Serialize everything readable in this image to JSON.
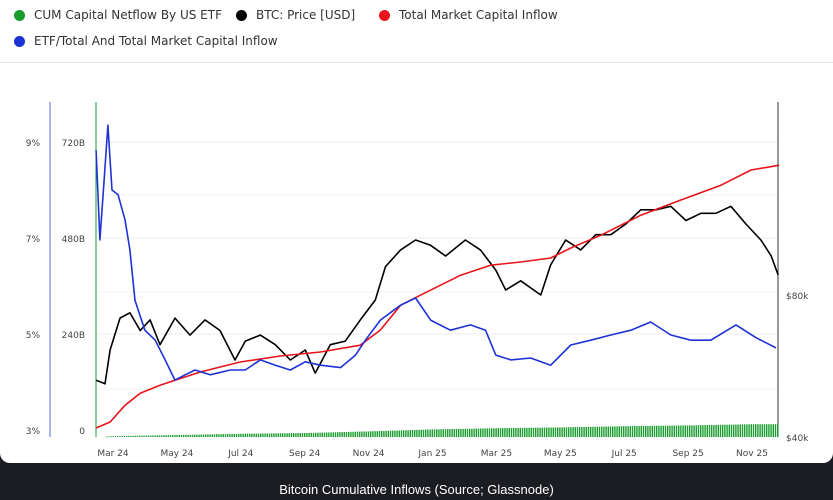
{
  "caption": "Bitcoin Cumulative Inflows (Source; Glassnode)",
  "legend": [
    {
      "label": "CUM Capital Netflow By US ETF",
      "color": "#1a9c2f"
    },
    {
      "label": "BTC: Price [USD]",
      "color": "#000000"
    },
    {
      "label": "Total Market Capital Inflow",
      "color": "#e8141c"
    },
    {
      "label": "ETF/Total And Total Market Capital Inflow",
      "color": "#1f32d6"
    }
  ],
  "chart_data": {
    "type": "line",
    "x_unit": "months since Mar 2024",
    "x_range": [
      -0.53,
      20.85
    ],
    "x_ticks": [
      "Mar 24",
      "May 24",
      "Jul 24",
      "Sep 24",
      "Nov 24",
      "Jan 25",
      "Mar 25",
      "May 25",
      "Jul 25",
      "Sep 25",
      "Nov 25"
    ],
    "x_tick_positions": [
      0,
      2,
      4,
      6,
      8,
      10,
      12,
      14,
      16,
      18,
      20
    ],
    "y_axes": {
      "percent": {
        "ticks": [
          "9%",
          "7%",
          "5%",
          "3%"
        ],
        "values": [
          9,
          7,
          5,
          3
        ],
        "range": [
          3,
          9
        ]
      },
      "billions": {
        "ticks": [
          "720B",
          "480B",
          "240B",
          "0"
        ],
        "values": [
          720,
          480,
          240,
          0
        ],
        "range": [
          0,
          720
        ]
      },
      "price": {
        "ticks": [
          "$80k",
          "$40k"
        ],
        "values": [
          80,
          40
        ]
      }
    },
    "series": [
      {
        "name": "CUM Capital Netflow By US ETF",
        "type": "bar",
        "axis": "billions",
        "color": "#1a9c2f",
        "points": [
          [
            -0.5,
            0
          ],
          [
            0,
            2
          ],
          [
            2,
            5
          ],
          [
            4,
            8
          ],
          [
            6,
            10
          ],
          [
            8,
            14
          ],
          [
            10,
            19
          ],
          [
            12,
            22
          ],
          [
            14,
            24
          ],
          [
            16,
            27
          ],
          [
            18,
            29
          ],
          [
            20,
            32
          ],
          [
            20.8,
            32
          ]
        ]
      },
      {
        "name": "BTC: Price [USD]",
        "axis": "price",
        "unit": "k USD",
        "color": "#000000",
        "points": [
          [
            -0.53,
            56
          ],
          [
            -0.25,
            55
          ],
          [
            -0.09,
            64.5
          ],
          [
            0.22,
            73.5
          ],
          [
            0.53,
            75
          ],
          [
            0.85,
            70
          ],
          [
            1.16,
            73
          ],
          [
            1.47,
            66
          ],
          [
            1.94,
            73.5
          ],
          [
            2.41,
            68.7
          ],
          [
            2.88,
            73
          ],
          [
            3.35,
            70
          ],
          [
            3.82,
            61.7
          ],
          [
            4.14,
            67
          ],
          [
            4.61,
            68.7
          ],
          [
            5.08,
            66
          ],
          [
            5.55,
            61.7
          ],
          [
            6.02,
            64.5
          ],
          [
            6.33,
            58
          ],
          [
            6.8,
            66
          ],
          [
            7.27,
            67
          ],
          [
            7.74,
            73
          ],
          [
            8.21,
            78.6
          ],
          [
            8.53,
            88
          ],
          [
            9,
            92.7
          ],
          [
            9.47,
            95.5
          ],
          [
            9.94,
            94
          ],
          [
            10.41,
            91
          ],
          [
            11.03,
            95.5
          ],
          [
            11.5,
            92.7
          ],
          [
            11.98,
            87
          ],
          [
            12.29,
            81.4
          ],
          [
            12.76,
            84
          ],
          [
            13.39,
            80
          ],
          [
            13.7,
            88.5
          ],
          [
            14.17,
            95.5
          ],
          [
            14.64,
            92.7
          ],
          [
            15.11,
            97
          ],
          [
            15.58,
            97
          ],
          [
            16.05,
            100
          ],
          [
            16.52,
            104
          ],
          [
            16.99,
            104
          ],
          [
            17.46,
            105
          ],
          [
            17.93,
            101
          ],
          [
            18.4,
            103
          ],
          [
            18.87,
            103
          ],
          [
            19.34,
            105
          ],
          [
            19.81,
            100
          ],
          [
            20.28,
            95.5
          ],
          [
            20.6,
            91
          ],
          [
            20.82,
            85.6
          ]
        ]
      },
      {
        "name": "Total Market Capital Inflow",
        "axis": "billions",
        "color": "#e8141c",
        "points": [
          [
            -0.53,
            5
          ],
          [
            -0.09,
            20
          ],
          [
            0.38,
            62
          ],
          [
            0.85,
            92
          ],
          [
            1.47,
            112
          ],
          [
            2.73,
            145
          ],
          [
            3.98,
            170
          ],
          [
            5.24,
            185
          ],
          [
            6.49,
            195
          ],
          [
            7.74,
            212
          ],
          [
            8.37,
            250
          ],
          [
            9,
            312
          ],
          [
            9.62,
            337
          ],
          [
            10.25,
            362
          ],
          [
            10.88,
            387
          ],
          [
            11.82,
            412
          ],
          [
            12.76,
            420
          ],
          [
            13.7,
            430
          ],
          [
            14.33,
            455
          ],
          [
            15.27,
            487
          ],
          [
            16.52,
            537
          ],
          [
            17.77,
            575
          ],
          [
            19.03,
            612
          ],
          [
            19.97,
            650
          ],
          [
            20.85,
            662
          ]
        ]
      },
      {
        "name": "ETF/Total And Total Market Capital Inflow",
        "axis": "percent",
        "color": "#1f32d6",
        "points": [
          [
            -0.53,
            8.83
          ],
          [
            -0.41,
            6.96
          ],
          [
            -0.31,
            7.9
          ],
          [
            -0.16,
            9.35
          ],
          [
            -0.03,
            8
          ],
          [
            0.16,
            7.9
          ],
          [
            0.38,
            7.37
          ],
          [
            0.53,
            6.75
          ],
          [
            0.69,
            5.7
          ],
          [
            1,
            5.08
          ],
          [
            1.32,
            4.87
          ],
          [
            1.63,
            4.46
          ],
          [
            1.94,
            4.04
          ],
          [
            2.26,
            4.15
          ],
          [
            2.57,
            4.25
          ],
          [
            3.04,
            4.15
          ],
          [
            3.67,
            4.25
          ],
          [
            4.14,
            4.25
          ],
          [
            4.61,
            4.46
          ],
          [
            5.08,
            4.35
          ],
          [
            5.55,
            4.25
          ],
          [
            6.02,
            4.42
          ],
          [
            6.49,
            4.35
          ],
          [
            7.12,
            4.3
          ],
          [
            7.59,
            4.56
          ],
          [
            7.9,
            4.87
          ],
          [
            8.37,
            5.29
          ],
          [
            9,
            5.6
          ],
          [
            9.47,
            5.75
          ],
          [
            9.94,
            5.29
          ],
          [
            10.56,
            5.08
          ],
          [
            11.19,
            5.19
          ],
          [
            11.66,
            5.08
          ],
          [
            11.98,
            4.56
          ],
          [
            12.45,
            4.46
          ],
          [
            13.07,
            4.5
          ],
          [
            13.7,
            4.35
          ],
          [
            14.33,
            4.77
          ],
          [
            14.95,
            4.87
          ],
          [
            15.58,
            4.98
          ],
          [
            16.21,
            5.08
          ],
          [
            16.83,
            5.25
          ],
          [
            17.46,
            4.98
          ],
          [
            18.09,
            4.87
          ],
          [
            18.71,
            4.87
          ],
          [
            19.5,
            5.19
          ],
          [
            20.13,
            4.92
          ],
          [
            20.75,
            4.71
          ]
        ]
      }
    ]
  }
}
